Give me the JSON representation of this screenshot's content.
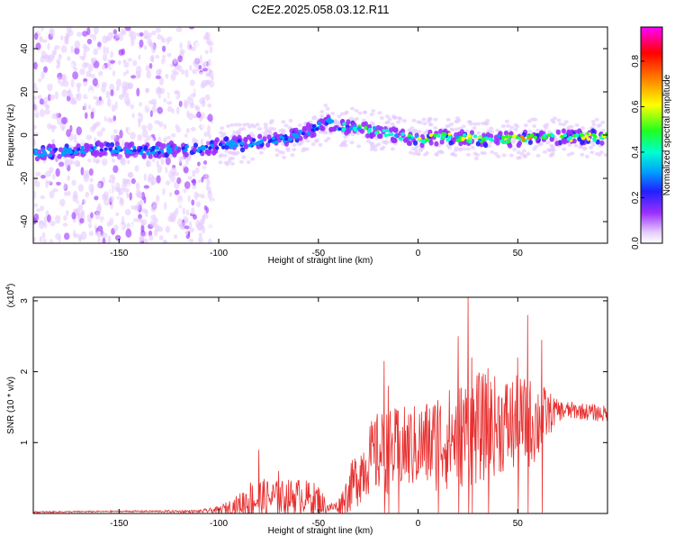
{
  "figure": {
    "title": "C2E2.2025.058.03.12.R11"
  },
  "colors": {
    "signal": "#e83030",
    "axis": "#000000"
  },
  "chart_data": [
    {
      "type": "heatmap",
      "xlabel": "Height of straight line (km)",
      "ylabel": "Frequency (Hz)",
      "xlim": [
        -193,
        95
      ],
      "ylim": [
        -50,
        50
      ],
      "x_ticks": [
        -150,
        -100,
        -50,
        0,
        50
      ],
      "y_ticks": [
        -40,
        -20,
        0,
        20,
        40
      ],
      "colorbar": {
        "label": "Normalized spectral amplitude",
        "range": [
          0.0,
          0.95
        ],
        "ticks": [
          0.0,
          0.2,
          0.4,
          0.6,
          0.8
        ],
        "colormap": [
          "#ffffff",
          "#e6ccff",
          "#9b30ff",
          "#2020ff",
          "#00a0ff",
          "#00ffd0",
          "#20ff20",
          "#ffff00",
          "#ff8000",
          "#ff0000",
          "#ff00ff"
        ]
      },
      "ridge": {
        "x": [
          -193,
          -180,
          -170,
          -160,
          -150,
          -140,
          -130,
          -120,
          -110,
          -100,
          -90,
          -80,
          -70,
          -60,
          -50,
          -45,
          -40,
          -30,
          -20,
          -10,
          0,
          10,
          20,
          30,
          40,
          50,
          60,
          70,
          80,
          95
        ],
        "frequency": [
          -8,
          -8,
          -7,
          -6,
          -7,
          -7,
          -7,
          -6,
          -7,
          -5,
          -4,
          -3,
          -2,
          0,
          4,
          6,
          4,
          3,
          2,
          0,
          -2,
          -1,
          -1,
          -2,
          -2,
          -2,
          -1,
          -1,
          -1,
          -1
        ]
      }
    },
    {
      "type": "line",
      "xlabel": "Height of straight line (km)",
      "ylabel": "SNR (10 * v/v)",
      "y_multiplier": "(x10^4)",
      "xlim": [
        -193,
        95
      ],
      "ylim": [
        0,
        3.05
      ],
      "x_ticks": [
        -150,
        -100,
        -50,
        0,
        50
      ],
      "y_ticks": [
        1,
        2,
        3
      ],
      "envelope": {
        "x": [
          -193,
          -150,
          -110,
          -100,
          -90,
          -85,
          -80,
          -70,
          -60,
          -50,
          -45,
          -40,
          -35,
          -30,
          -25,
          -20,
          -10,
          0,
          10,
          20,
          25,
          30,
          40,
          50,
          60,
          65,
          70,
          80,
          95
        ],
        "mean": [
          0.02,
          0.03,
          0.03,
          0.05,
          0.12,
          0.18,
          0.2,
          0.22,
          0.25,
          0.18,
          0.08,
          0.1,
          0.3,
          0.55,
          0.75,
          0.85,
          0.9,
          0.95,
          1.0,
          1.1,
          1.15,
          1.2,
          1.25,
          1.25,
          1.3,
          1.4,
          1.45,
          1.45,
          1.4
        ],
        "amplitude": [
          0.01,
          0.01,
          0.02,
          0.05,
          0.15,
          0.3,
          0.3,
          0.25,
          0.25,
          0.25,
          0.06,
          0.1,
          0.3,
          0.45,
          0.5,
          0.6,
          0.6,
          0.6,
          0.7,
          0.75,
          0.8,
          0.8,
          0.7,
          0.7,
          0.6,
          0.35,
          0.15,
          0.12,
          0.12
        ]
      },
      "peaks": {
        "x": [
          -80,
          -70,
          -17,
          -15,
          -10,
          10,
          20,
          25,
          27,
          35,
          50,
          55,
          62
        ],
        "y": [
          0.9,
          0.6,
          2.15,
          1.8,
          1.45,
          1.6,
          2.5,
          3.05,
          2.2,
          2.05,
          2.2,
          2.8,
          2.45
        ]
      }
    }
  ]
}
